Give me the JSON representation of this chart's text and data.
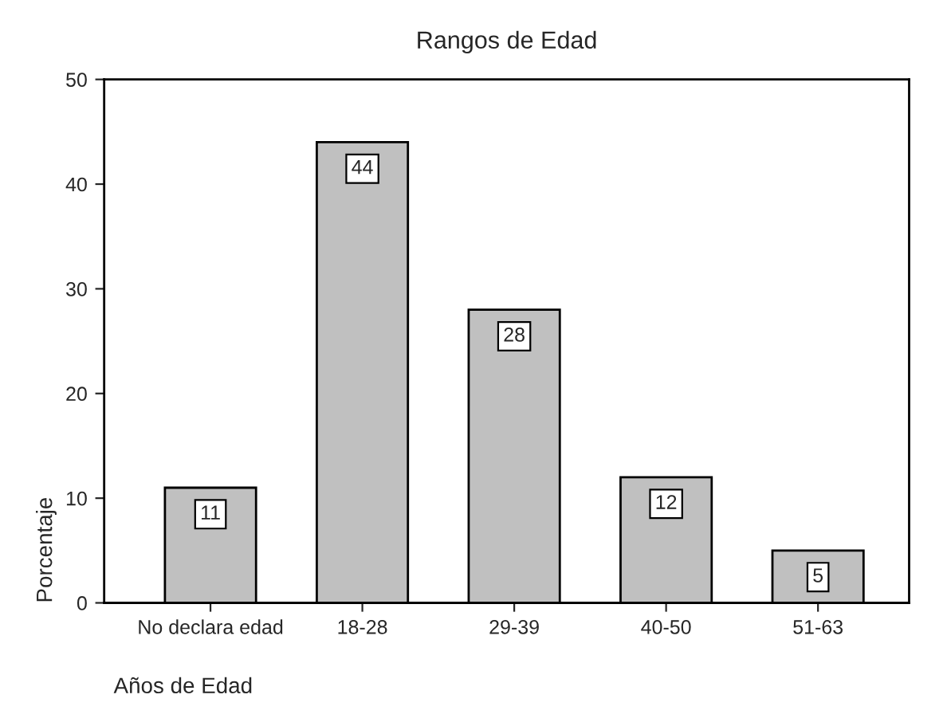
{
  "chart_data": {
    "type": "bar",
    "title": "Rangos de Edad",
    "xlabel": "Años de Edad",
    "ylabel": "Porcentaje",
    "categories": [
      "No declara edad",
      "18-28",
      "29-39",
      "40-50",
      "51-63"
    ],
    "values": [
      11,
      44,
      28,
      12,
      5
    ],
    "color": "#c0c0c0",
    "ylim": [
      0,
      50
    ],
    "yticks": [
      0,
      10,
      20,
      30,
      40,
      50
    ],
    "grid": false,
    "data_labels": true
  }
}
